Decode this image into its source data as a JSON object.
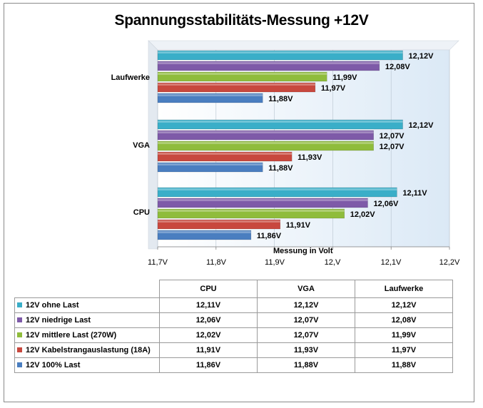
{
  "chart_data": {
    "type": "bar",
    "orientation": "horizontal",
    "title": "Spannungsstabilitäts-Messung +12V",
    "xlabel": "Messung in Volt",
    "xlim": [
      11.7,
      12.2
    ],
    "xticks": [
      "11,7V",
      "11,8V",
      "11,9V",
      "12,V",
      "12,1V",
      "12,2V"
    ],
    "categories": [
      "CPU",
      "VGA",
      "Laufwerke"
    ],
    "series": [
      {
        "name": "12V ohne Last",
        "color": "#3aaec8",
        "values": [
          12.11,
          12.12,
          12.12
        ],
        "labels": [
          "12,11V",
          "12,12V",
          "12,12V"
        ]
      },
      {
        "name": "12V niedrige Last",
        "color": "#7e5aa8",
        "values": [
          12.06,
          12.07,
          12.08
        ],
        "labels": [
          "12,06V",
          "12,07V",
          "12,08V"
        ]
      },
      {
        "name": "12V mittlere Last (270W)",
        "color": "#8fbc3c",
        "values": [
          12.02,
          12.07,
          11.99
        ],
        "labels": [
          "12,02V",
          "12,07V",
          "11,99V"
        ]
      },
      {
        "name": "12V Kabelstrangauslastung  (18A)",
        "color": "#c8483e",
        "values": [
          11.91,
          11.93,
          11.97
        ],
        "labels": [
          "11,91V",
          "11,93V",
          "11,97V"
        ]
      },
      {
        "name": "12V 100%  Last",
        "color": "#4a7ec0",
        "values": [
          11.86,
          11.88,
          11.88
        ],
        "labels": [
          "11,86V",
          "11,88V",
          "11,88V"
        ]
      }
    ],
    "grid": true,
    "legend": "data-table"
  }
}
